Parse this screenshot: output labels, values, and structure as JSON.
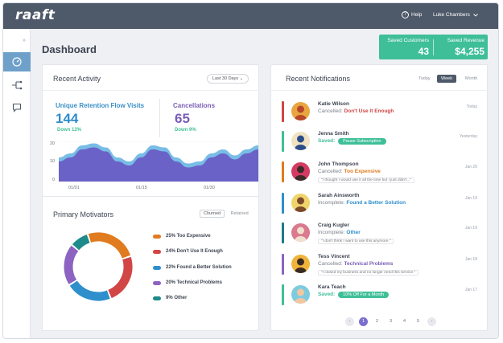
{
  "app": {
    "logo": "raaft"
  },
  "topbar": {
    "help_label": "Help",
    "user_name": "Luke Chambers"
  },
  "page": {
    "title": "Dashboard"
  },
  "stats": {
    "saved_customers_label": "Saved Customers",
    "saved_customers_value": "43",
    "saved_revenue_label": "Saved Revenue",
    "saved_revenue_value": "$4,255"
  },
  "recent_activity": {
    "title": "Recent Activity",
    "range_label": "Last 30 Days",
    "retention_label": "Unique Retention Flow Visits",
    "retention_value": "144",
    "retention_change": "Down 12%",
    "cancellations_label": "Cancellations",
    "cancellations_value": "65",
    "cancellations_change": "Down 9%"
  },
  "chart_data": {
    "type": "area",
    "x_ticks": [
      "01/01",
      "01/15",
      "01/30"
    ],
    "y_ticks": [
      "20",
      "10",
      "0"
    ],
    "ylim": [
      0,
      20
    ],
    "series": [
      {
        "name": "",
        "values": [
          12,
          14,
          18,
          19,
          17,
          12,
          10,
          14,
          18,
          17,
          12,
          9,
          10,
          14,
          16,
          13,
          16,
          18
        ]
      },
      {
        "name": "",
        "values": [
          10,
          12,
          16,
          17,
          15,
          10,
          8,
          12,
          16,
          15,
          10,
          7,
          8,
          12,
          14,
          11,
          14,
          16
        ]
      }
    ],
    "colors": [
      "#78bde6",
      "#6a62c7"
    ]
  },
  "motivators": {
    "title": "Primary Motivators",
    "tab_churned": "Churned",
    "tab_retained": "Retained",
    "items": [
      {
        "label": "25% Too Expensive",
        "value": 25,
        "color": "#e07b1f"
      },
      {
        "label": "24% Don't Use It Enough",
        "value": 24,
        "color": "#d24545"
      },
      {
        "label": "22% Found a Better Solution",
        "value": 22,
        "color": "#2e8fcc"
      },
      {
        "label": "20% Technical Problems",
        "value": 20,
        "color": "#8d63c2"
      },
      {
        "label": "9% Other",
        "value": 9,
        "color": "#1e8a8a"
      }
    ]
  },
  "notifications": {
    "title": "Recent Notifications",
    "tabs": [
      "Today",
      "Week",
      "Month"
    ],
    "items": [
      {
        "name": "Katie Wilson",
        "status": "Cancelled:",
        "reason": "Don't Use It Enough",
        "reason_color": "#d24545",
        "bar": "#d24545",
        "date": "Today",
        "avatar_bg": "#e8a640",
        "avatar_fg": "#b8462a"
      },
      {
        "name": "Jenna Smith",
        "status": "Saved:",
        "badge": "Pause Subscription",
        "bar": "#3fbf98",
        "date": "Yesterday",
        "avatar_bg": "#f1e2c2",
        "avatar_fg": "#2d4d8a"
      },
      {
        "name": "John Thompson",
        "status": "Cancelled:",
        "reason": "Too Expensive",
        "reason_color": "#e07b1f",
        "quote": "\"I thought I would use it all the time but I just didn't...\"",
        "bar": "#e07b1f",
        "date": "Jan 20",
        "avatar_bg": "#d43b63",
        "avatar_fg": "#3a2a28"
      },
      {
        "name": "Sarah Ainsworth",
        "status": "Incomplete:",
        "reason": "Found a Better Solution",
        "reason_color": "#2e8fcc",
        "bar": "#2e8fcc",
        "date": "Jan 19",
        "avatar_bg": "#f0d36a",
        "avatar_fg": "#7a4a2a"
      },
      {
        "name": "Craig Kugler",
        "status": "Incomplete:",
        "reason": "Other",
        "reason_color": "#2e8fcc",
        "quote": "\"I don't think I want to use this anymore.\"",
        "bar": "#1e7a8a",
        "date": "Jan 19",
        "avatar_bg": "#d97a8e",
        "avatar_fg": "#f0e0d0"
      },
      {
        "name": "Tess Vincent",
        "status": "Cancelled:",
        "reason": "Technical Problems",
        "reason_color": "#7a5db8",
        "quote": "\"I closed my business and no longer need this service.\"",
        "bar": "#8d63c2",
        "date": "Jan 18",
        "avatar_bg": "#f1b43a",
        "avatar_fg": "#3a2a20"
      },
      {
        "name": "Kara Teach",
        "status": "Saved:",
        "badge": "10% Off For a Month",
        "bar": "#3fbf98",
        "date": "Jan 17",
        "avatar_bg": "#7ecbe0",
        "avatar_fg": "#f2c7a0"
      }
    ]
  },
  "pagination": {
    "pages": [
      "1",
      "2",
      "3",
      "4",
      "5"
    ],
    "current": "1"
  }
}
